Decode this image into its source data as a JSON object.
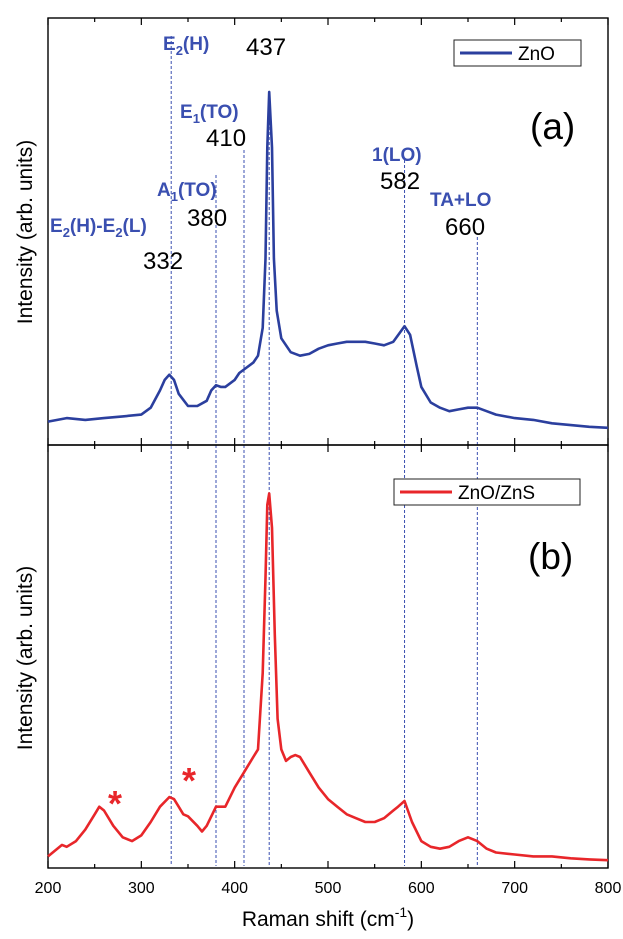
{
  "chart_data": [
    {
      "panel_label": "(a)",
      "type": "line",
      "ylabel": "Intensity (arb. units)",
      "legend": {
        "label": "ZnO",
        "position": "top-right"
      },
      "xlim": [
        200,
        800
      ],
      "ylim": [
        0,
        1
      ],
      "colors": {
        "line": "#2b3f9e",
        "peak_label": "#3a4fb0",
        "guide": "#3a4fb0"
      },
      "series": [
        {
          "name": "ZnO",
          "points": [
            [
              200,
              0.03
            ],
            [
              220,
              0.04
            ],
            [
              240,
              0.035
            ],
            [
              260,
              0.04
            ],
            [
              280,
              0.045
            ],
            [
              300,
              0.05
            ],
            [
              310,
              0.07
            ],
            [
              320,
              0.12
            ],
            [
              325,
              0.15
            ],
            [
              330,
              0.165
            ],
            [
              335,
              0.15
            ],
            [
              340,
              0.11
            ],
            [
              350,
              0.075
            ],
            [
              360,
              0.075
            ],
            [
              370,
              0.09
            ],
            [
              375,
              0.12
            ],
            [
              380,
              0.135
            ],
            [
              385,
              0.13
            ],
            [
              390,
              0.13
            ],
            [
              400,
              0.15
            ],
            [
              405,
              0.17
            ],
            [
              410,
              0.18
            ],
            [
              420,
              0.2
            ],
            [
              425,
              0.22
            ],
            [
              430,
              0.3
            ],
            [
              433,
              0.5
            ],
            [
              435,
              0.82
            ],
            [
              437,
              0.98
            ],
            [
              440,
              0.82
            ],
            [
              442,
              0.5
            ],
            [
              445,
              0.35
            ],
            [
              450,
              0.27
            ],
            [
              460,
              0.23
            ],
            [
              470,
              0.22
            ],
            [
              480,
              0.225
            ],
            [
              490,
              0.24
            ],
            [
              500,
              0.25
            ],
            [
              510,
              0.255
            ],
            [
              520,
              0.26
            ],
            [
              530,
              0.26
            ],
            [
              540,
              0.26
            ],
            [
              550,
              0.255
            ],
            [
              560,
              0.25
            ],
            [
              570,
              0.26
            ],
            [
              578,
              0.29
            ],
            [
              582,
              0.305
            ],
            [
              588,
              0.28
            ],
            [
              595,
              0.19
            ],
            [
              600,
              0.13
            ],
            [
              610,
              0.085
            ],
            [
              620,
              0.07
            ],
            [
              630,
              0.06
            ],
            [
              640,
              0.065
            ],
            [
              650,
              0.07
            ],
            [
              660,
              0.07
            ],
            [
              670,
              0.06
            ],
            [
              680,
              0.05
            ],
            [
              700,
              0.04
            ],
            [
              720,
              0.035
            ],
            [
              740,
              0.025
            ],
            [
              760,
              0.02
            ],
            [
              780,
              0.015
            ],
            [
              800,
              0.012
            ]
          ]
        }
      ],
      "peaks": [
        {
          "x": 332,
          "value_label": "332",
          "mode": "E2(H)-E2(L)",
          "label_parts": [
            [
              "E",
              ""
            ],
            [
              "2",
              "sub"
            ],
            [
              "(H)-E",
              ""
            ],
            [
              "2",
              "sub"
            ],
            [
              "(L)",
              ""
            ]
          ]
        },
        {
          "x": 380,
          "value_label": "380",
          "mode": "A1(TO)",
          "label_parts": [
            [
              "A",
              ""
            ],
            [
              "1",
              "sub"
            ],
            [
              "(TO)",
              ""
            ]
          ]
        },
        {
          "x": 410,
          "value_label": "410",
          "mode": "E1(TO)",
          "label_parts": [
            [
              "E",
              ""
            ],
            [
              "1",
              "sub"
            ],
            [
              "(TO)",
              ""
            ]
          ]
        },
        {
          "x": 437,
          "value_label": "437",
          "mode": "E2(H)",
          "label_parts": [
            [
              "E",
              ""
            ],
            [
              "2",
              "sub"
            ],
            [
              "(H)",
              ""
            ]
          ]
        },
        {
          "x": 582,
          "value_label": "582",
          "mode": "1(LO)",
          "label_parts": [
            [
              "1(LO)",
              ""
            ]
          ]
        },
        {
          "x": 660,
          "value_label": "660",
          "mode": "TA+LO",
          "label_parts": [
            [
              "TA+LO",
              ""
            ]
          ]
        }
      ]
    },
    {
      "panel_label": "(b)",
      "type": "line",
      "ylabel": "Intensity (arb. units)",
      "xlabel": "Raman shift (cm",
      "xlabel_sup": "-1",
      "xlabel_end": ")",
      "legend": {
        "label": "ZnO/ZnS",
        "position": "top-right"
      },
      "xlim": [
        200,
        800
      ],
      "ylim": [
        0,
        1
      ],
      "xticks": [
        "200",
        "300",
        "400",
        "500",
        "600",
        "700",
        "800"
      ],
      "colors": {
        "line": "#e8262a",
        "marker": "#e8262a"
      },
      "asterisks": [
        {
          "x": 272,
          "text": "*"
        },
        {
          "x": 352,
          "text": "*"
        }
      ],
      "series": [
        {
          "name": "ZnO/ZnS",
          "points": [
            [
              200,
              0.02
            ],
            [
              210,
              0.04
            ],
            [
              215,
              0.05
            ],
            [
              220,
              0.045
            ],
            [
              230,
              0.06
            ],
            [
              240,
              0.09
            ],
            [
              250,
              0.13
            ],
            [
              255,
              0.15
            ],
            [
              260,
              0.14
            ],
            [
              270,
              0.1
            ],
            [
              280,
              0.07
            ],
            [
              290,
              0.06
            ],
            [
              300,
              0.075
            ],
            [
              310,
              0.11
            ],
            [
              320,
              0.15
            ],
            [
              330,
              0.175
            ],
            [
              335,
              0.17
            ],
            [
              340,
              0.15
            ],
            [
              345,
              0.13
            ],
            [
              350,
              0.125
            ],
            [
              360,
              0.1
            ],
            [
              365,
              0.085
            ],
            [
              370,
              0.1
            ],
            [
              380,
              0.15
            ],
            [
              390,
              0.15
            ],
            [
              400,
              0.2
            ],
            [
              410,
              0.24
            ],
            [
              420,
              0.28
            ],
            [
              425,
              0.3
            ],
            [
              430,
              0.5
            ],
            [
              433,
              0.75
            ],
            [
              435,
              0.94
            ],
            [
              437,
              0.97
            ],
            [
              440,
              0.88
            ],
            [
              443,
              0.6
            ],
            [
              446,
              0.38
            ],
            [
              450,
              0.3
            ],
            [
              455,
              0.27
            ],
            [
              460,
              0.28
            ],
            [
              465,
              0.285
            ],
            [
              470,
              0.28
            ],
            [
              480,
              0.24
            ],
            [
              490,
              0.2
            ],
            [
              500,
              0.17
            ],
            [
              510,
              0.15
            ],
            [
              520,
              0.13
            ],
            [
              530,
              0.12
            ],
            [
              540,
              0.11
            ],
            [
              550,
              0.11
            ],
            [
              560,
              0.12
            ],
            [
              570,
              0.14
            ],
            [
              575,
              0.15
            ],
            [
              582,
              0.165
            ],
            [
              590,
              0.11
            ],
            [
              600,
              0.06
            ],
            [
              610,
              0.045
            ],
            [
              620,
              0.04
            ],
            [
              630,
              0.045
            ],
            [
              640,
              0.06
            ],
            [
              650,
              0.07
            ],
            [
              660,
              0.06
            ],
            [
              670,
              0.04
            ],
            [
              680,
              0.03
            ],
            [
              700,
              0.025
            ],
            [
              720,
              0.02
            ],
            [
              740,
              0.02
            ],
            [
              760,
              0.015
            ],
            [
              780,
              0.012
            ],
            [
              800,
              0.01
            ]
          ]
        }
      ]
    }
  ]
}
